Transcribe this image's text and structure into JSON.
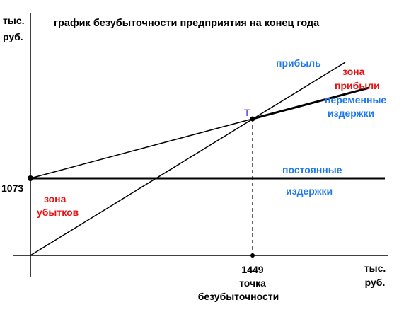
{
  "chart_data": {
    "type": "line",
    "title": "график безубыточности предприятия на конец года",
    "ylabel_line1": "тыс.",
    "ylabel_line2": "руб.",
    "xlabel_line1": "тыс.",
    "xlabel_line2": "руб.",
    "y_tick_label": "1073",
    "x_tick_label": "1449",
    "breakeven_label_line1": "точка",
    "breakeven_label_line2": "безубыточности",
    "point_label": "Т",
    "lines": {
      "profit": "прибыль",
      "variable_costs_line1": "переменные",
      "variable_costs_line2": "издержки",
      "fixed_costs_line1": "постоянные",
      "fixed_costs_line2": "издержки"
    },
    "zones": {
      "profit_line1": "зона",
      "profit_line2": "прибыли",
      "loss_line1": "зона",
      "loss_line2": "убытков"
    },
    "colors": {
      "axes": "#000000",
      "blue_labels": "#1E78F0",
      "red_labels": "#E81010",
      "point_label": "#6464E0"
    }
  }
}
